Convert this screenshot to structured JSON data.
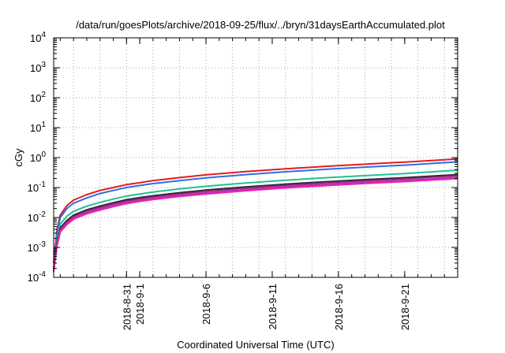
{
  "chart_data": {
    "type": "line",
    "title": "/data/run/goesPlots/archive/2018-09-25/flux/../bryn/31daysEarthAccumulated.plot",
    "xlabel": "Coordinated Universal Time (UTC)",
    "ylabel": "cGy",
    "yscale": "log",
    "ylim": [
      0.0001,
      10000
    ],
    "xlim": [
      "2018-08-25T12:00",
      "2018-09-25T00:00"
    ],
    "grid": true,
    "x_ticks": [
      {
        "label": "2018-8-31",
        "value": "2018-08-31T00:00"
      },
      {
        "label": "2018-9-1",
        "value": "2018-09-01T00:00"
      },
      {
        "label": "2018-9-6",
        "value": "2018-09-06T00:00"
      },
      {
        "label": "2018-9-11",
        "value": "2018-09-11T00:00"
      },
      {
        "label": "2018-9-16",
        "value": "2018-09-16T00:00"
      },
      {
        "label": "2018-9-21",
        "value": "2018-09-21T00:00"
      }
    ],
    "y_ticks": [
      {
        "base": "10",
        "exp": "-4",
        "value": 0.0001
      },
      {
        "base": "10",
        "exp": "-3",
        "value": 0.001
      },
      {
        "base": "10",
        "exp": "-2",
        "value": 0.01
      },
      {
        "base": "10",
        "exp": "-1",
        "value": 0.1
      },
      {
        "base": "10",
        "exp": "0",
        "value": 1
      },
      {
        "base": "10",
        "exp": "1",
        "value": 10
      },
      {
        "base": "10",
        "exp": "2",
        "value": 100
      },
      {
        "base": "10",
        "exp": "3",
        "value": 1000
      },
      {
        "base": "10",
        "exp": "4",
        "value": 10000
      }
    ],
    "x": [
      "2018-08-25T12:00",
      "2018-08-25T18:00",
      "2018-08-26T00:00",
      "2018-08-26T12:00",
      "2018-08-27T00:00",
      "2018-08-28T00:00",
      "2018-08-29T00:00",
      "2018-08-30T00:00",
      "2018-08-31T00:00",
      "2018-09-01T00:00",
      "2018-09-02T00:00",
      "2018-09-04T00:00",
      "2018-09-06T00:00",
      "2018-09-09T00:00",
      "2018-09-12T00:00",
      "2018-09-15T00:00",
      "2018-09-18T00:00",
      "2018-09-21T00:00",
      "2018-09-25T00:00"
    ],
    "series": [
      {
        "color": "#e8191b",
        "values": [
          0.0003,
          0.004,
          0.012,
          0.025,
          0.038,
          0.058,
          0.08,
          0.1,
          0.125,
          0.145,
          0.17,
          0.215,
          0.265,
          0.34,
          0.42,
          0.51,
          0.6,
          0.71,
          0.9
        ]
      },
      {
        "color": "#2a6fe8",
        "values": [
          0.0003,
          0.003,
          0.01,
          0.02,
          0.03,
          0.045,
          0.063,
          0.08,
          0.1,
          0.117,
          0.135,
          0.17,
          0.21,
          0.27,
          0.335,
          0.405,
          0.48,
          0.56,
          0.72
        ]
      },
      {
        "color": "#22c090",
        "values": [
          0.0002,
          0.002,
          0.006,
          0.011,
          0.016,
          0.024,
          0.032,
          0.041,
          0.052,
          0.061,
          0.071,
          0.09,
          0.11,
          0.142,
          0.176,
          0.212,
          0.25,
          0.292,
          0.38
        ]
      },
      {
        "color": "#1a2030",
        "values": [
          0.0002,
          0.0015,
          0.0045,
          0.008,
          0.012,
          0.018,
          0.024,
          0.031,
          0.039,
          0.046,
          0.053,
          0.067,
          0.082,
          0.105,
          0.13,
          0.156,
          0.183,
          0.213,
          0.27
        ]
      },
      {
        "color": "#8a2860",
        "values": [
          0.00018,
          0.0014,
          0.0041,
          0.0073,
          0.011,
          0.0165,
          0.022,
          0.0285,
          0.036,
          0.0425,
          0.049,
          0.062,
          0.076,
          0.097,
          0.12,
          0.145,
          0.17,
          0.197,
          0.25
        ]
      },
      {
        "color": "#b030c0",
        "values": [
          0.00016,
          0.0012,
          0.0036,
          0.0064,
          0.0097,
          0.0146,
          0.0195,
          0.0252,
          0.032,
          0.0377,
          0.0435,
          0.055,
          0.067,
          0.086,
          0.107,
          0.128,
          0.15,
          0.174,
          0.22
        ]
      },
      {
        "color": "#f020b0",
        "values": [
          0.00015,
          0.0011,
          0.0033,
          0.0058,
          0.0088,
          0.0133,
          0.0178,
          0.023,
          0.029,
          0.0342,
          0.0395,
          0.05,
          0.061,
          0.078,
          0.097,
          0.116,
          0.136,
          0.158,
          0.2
        ]
      }
    ]
  }
}
